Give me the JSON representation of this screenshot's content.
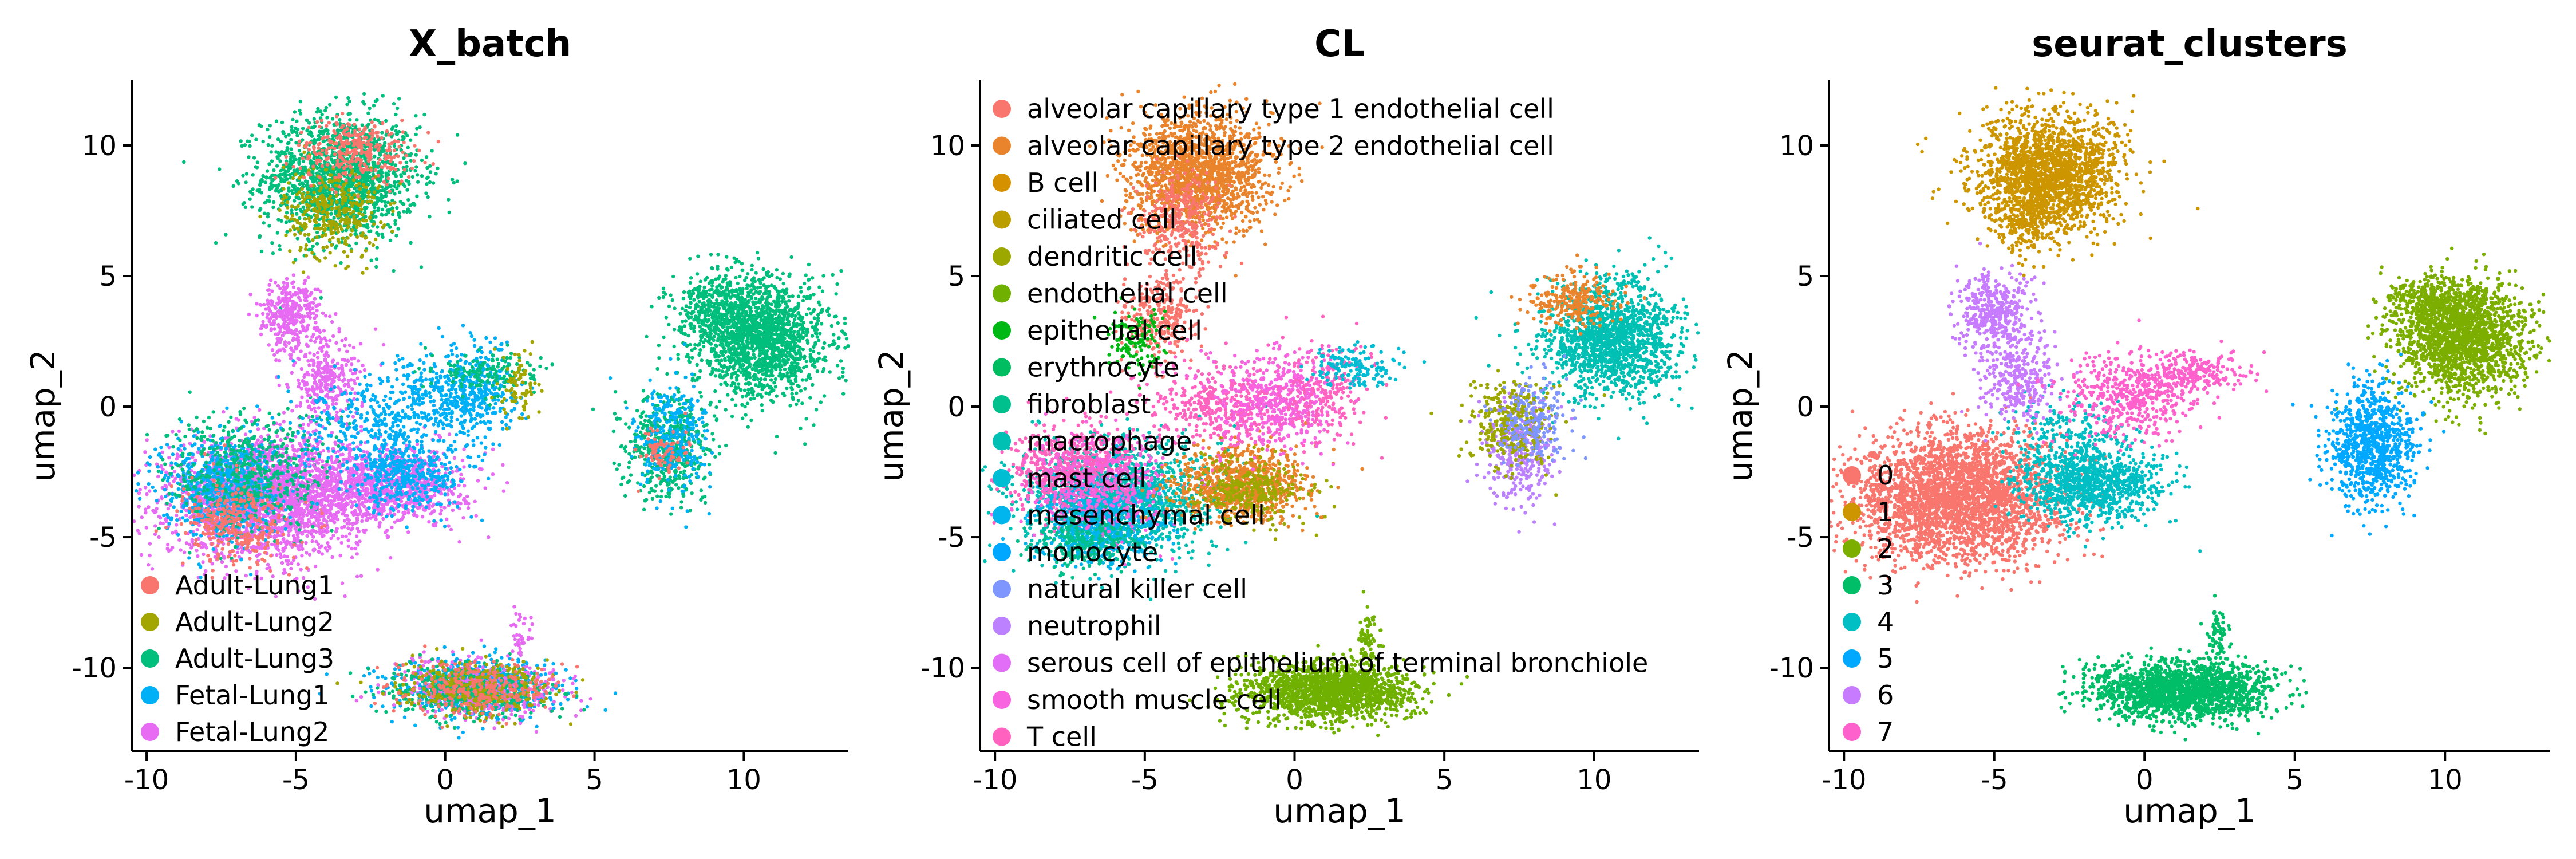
{
  "chart_data": [
    {
      "type": "scatter",
      "title": "X_batch",
      "xlabel": "umap_1",
      "ylabel": "umap_2",
      "xlim": [
        -10.5,
        13.5
      ],
      "ylim": [
        -13.2,
        12.5
      ],
      "xticks": [
        -10,
        -5,
        0,
        5,
        10
      ],
      "yticks": [
        -10,
        -5,
        0,
        5,
        10
      ],
      "grid": false,
      "legend_position": "bottom-left",
      "legend": [
        {
          "label": "Adult-Lung1",
          "color": "#F8766D"
        },
        {
          "label": "Adult-Lung2",
          "color": "#A3A500"
        },
        {
          "label": "Adult-Lung3",
          "color": "#00BF7D"
        },
        {
          "label": "Fetal-Lung1",
          "color": "#00B0F6"
        },
        {
          "label": "Fetal-Lung2",
          "color": "#E76BF3"
        }
      ],
      "point_clusters": [
        {
          "x": -3.5,
          "y": 8.8,
          "sx": 1.3,
          "sy": 1.2,
          "n": 1600,
          "color": "#00BF7D"
        },
        {
          "x": -3.8,
          "y": 7.5,
          "sx": 0.8,
          "sy": 0.9,
          "n": 350,
          "color": "#A3A500"
        },
        {
          "x": -3.0,
          "y": 9.8,
          "sx": 1.0,
          "sy": 0.6,
          "n": 300,
          "color": "#F8766D"
        },
        {
          "x": -6.0,
          "y": -3.5,
          "sx": 1.6,
          "sy": 1.1,
          "n": 2600,
          "color": "#E76BF3"
        },
        {
          "x": -7.5,
          "y": -3.0,
          "sx": 1.0,
          "sy": 1.0,
          "n": 700,
          "color": "#00B0F6"
        },
        {
          "x": -6.5,
          "y": -2.5,
          "sx": 1.4,
          "sy": 1.2,
          "n": 500,
          "color": "#00BF7D"
        },
        {
          "x": -7.0,
          "y": -4.5,
          "sx": 0.9,
          "sy": 0.8,
          "n": 300,
          "color": "#F8766D"
        },
        {
          "x": -1.8,
          "y": -3.0,
          "sx": 1.2,
          "sy": 0.7,
          "n": 900,
          "color": "#E76BF3"
        },
        {
          "x": -1.2,
          "y": -2.6,
          "sx": 1.0,
          "sy": 0.7,
          "n": 400,
          "color": "#00B0F6"
        },
        {
          "x": -5.2,
          "y": 3.5,
          "sx": 0.5,
          "sy": 0.7,
          "n": 350,
          "color": "#E76BF3"
        },
        {
          "x": -4.0,
          "y": 1.0,
          "sx": 0.6,
          "sy": 0.8,
          "n": 300,
          "color": "#E76BF3"
        },
        {
          "x": -2.5,
          "y": -0.8,
          "sx": 1.2,
          "sy": 0.8,
          "n": 250,
          "color": "#00B0F6"
        },
        {
          "x": -0.2,
          "y": 0.5,
          "sx": 1.0,
          "sy": 0.8,
          "n": 350,
          "color": "#00B0F6"
        },
        {
          "x": 1.2,
          "y": 0.5,
          "sx": 0.6,
          "sy": 1.0,
          "n": 250,
          "color": "#00B0F6"
        },
        {
          "x": 1.5,
          "y": 1.3,
          "sx": 0.9,
          "sy": 0.4,
          "n": 150,
          "color": "#00BF7D"
        },
        {
          "x": 2.5,
          "y": 0.8,
          "sx": 0.3,
          "sy": 0.7,
          "n": 80,
          "color": "#A3A500"
        },
        {
          "x": 10.6,
          "y": 2.6,
          "sx": 1.1,
          "sy": 1.1,
          "n": 1600,
          "color": "#00BF7D"
        },
        {
          "x": 9.2,
          "y": 3.8,
          "sx": 0.8,
          "sy": 0.7,
          "n": 350,
          "color": "#00BF7D"
        },
        {
          "x": 7.5,
          "y": -1.5,
          "sx": 0.7,
          "sy": 1.0,
          "n": 500,
          "color": "#00BF7D"
        },
        {
          "x": 7.6,
          "y": -1.2,
          "sx": 0.6,
          "sy": 1.1,
          "n": 300,
          "color": "#00B0F6"
        },
        {
          "x": 7.2,
          "y": -1.8,
          "sx": 0.4,
          "sy": 0.5,
          "n": 80,
          "color": "#F8766D"
        },
        {
          "x": 1.0,
          "y": -10.8,
          "sx": 1.4,
          "sy": 0.55,
          "n": 700,
          "color": "#00B0F6"
        },
        {
          "x": 1.2,
          "y": -10.8,
          "sx": 1.4,
          "sy": 0.55,
          "n": 500,
          "color": "#E76BF3"
        },
        {
          "x": 0.8,
          "y": -10.9,
          "sx": 1.4,
          "sy": 0.5,
          "n": 400,
          "color": "#00BF7D"
        },
        {
          "x": 1.0,
          "y": -10.8,
          "sx": 1.3,
          "sy": 0.5,
          "n": 300,
          "color": "#A3A500"
        },
        {
          "x": 1.0,
          "y": -10.8,
          "sx": 1.3,
          "sy": 0.5,
          "n": 250,
          "color": "#F8766D"
        },
        {
          "x": 2.5,
          "y": -8.8,
          "sx": 0.15,
          "sy": 0.5,
          "n": 40,
          "color": "#E76BF3"
        }
      ]
    },
    {
      "type": "scatter",
      "title": "CL",
      "xlabel": "umap_1",
      "ylabel": "umap_2",
      "xlim": [
        -10.5,
        13.5
      ],
      "ylim": [
        -13.2,
        12.5
      ],
      "xticks": [
        -10,
        -5,
        0,
        5,
        10
      ],
      "yticks": [
        -10,
        -5,
        0,
        5,
        10
      ],
      "grid": false,
      "legend_position": "top-left",
      "legend": [
        {
          "label": "alveolar capillary type 1 endothelial cell",
          "color": "#F8766D"
        },
        {
          "label": "alveolar capillary type 2 endothelial cell",
          "color": "#E9842C"
        },
        {
          "label": "B cell",
          "color": "#D69100"
        },
        {
          "label": "ciliated cell",
          "color": "#BC9D00"
        },
        {
          "label": "dendritic cell",
          "color": "#9CA700"
        },
        {
          "label": "endothelial cell",
          "color": "#6FB000"
        },
        {
          "label": "epithelial cell",
          "color": "#00B813"
        },
        {
          "label": "erythrocyte",
          "color": "#00BD61"
        },
        {
          "label": "fibroblast",
          "color": "#00C08E"
        },
        {
          "label": "macrophage",
          "color": "#00C0B4"
        },
        {
          "label": "mast cell",
          "color": "#00BDD4"
        },
        {
          "label": "mesenchymal cell",
          "color": "#00B5EE"
        },
        {
          "label": "monocyte",
          "color": "#00A7FF"
        },
        {
          "label": "natural killer cell",
          "color": "#7F96FF"
        },
        {
          "label": "neutrophil",
          "color": "#BC81FF"
        },
        {
          "label": "serous cell of epithelium of terminal bronchiole",
          "color": "#E26EF7"
        },
        {
          "label": "smooth muscle cell",
          "color": "#F863DF"
        },
        {
          "label": "T cell",
          "color": "#FF62BF"
        }
      ],
      "point_clusters": [
        {
          "x": -3.2,
          "y": 9.0,
          "sx": 1.2,
          "sy": 1.1,
          "n": 1600,
          "color": "#E9842C"
        },
        {
          "x": -3.8,
          "y": 7.2,
          "sx": 0.7,
          "sy": 0.9,
          "n": 350,
          "color": "#F8766D"
        },
        {
          "x": -6.0,
          "y": -3.5,
          "sx": 1.6,
          "sy": 1.1,
          "n": 1600,
          "color": "#00C0B4"
        },
        {
          "x": -7.5,
          "y": -2.5,
          "sx": 1.0,
          "sy": 0.9,
          "n": 600,
          "color": "#FF62BF"
        },
        {
          "x": -6.5,
          "y": -4.5,
          "sx": 1.0,
          "sy": 0.8,
          "n": 600,
          "color": "#00B5EE"
        },
        {
          "x": -6.5,
          "y": -3.0,
          "sx": 1.2,
          "sy": 1.0,
          "n": 400,
          "color": "#F863DF"
        },
        {
          "x": -7.0,
          "y": -5.2,
          "sx": 0.8,
          "sy": 0.5,
          "n": 200,
          "color": "#00C08E"
        },
        {
          "x": -1.8,
          "y": -3.0,
          "sx": 1.1,
          "sy": 0.7,
          "n": 800,
          "color": "#E9842C"
        },
        {
          "x": -1.5,
          "y": -3.2,
          "sx": 1.0,
          "sy": 0.6,
          "n": 300,
          "color": "#9CA700"
        },
        {
          "x": -4.5,
          "y": 3.5,
          "sx": 0.6,
          "sy": 0.8,
          "n": 300,
          "color": "#F8766D"
        },
        {
          "x": -2.5,
          "y": 0.0,
          "sx": 1.2,
          "sy": 0.8,
          "n": 400,
          "color": "#FF62BF"
        },
        {
          "x": -0.5,
          "y": 0.3,
          "sx": 1.0,
          "sy": 0.9,
          "n": 450,
          "color": "#F863DF"
        },
        {
          "x": 1.0,
          "y": 0.5,
          "sx": 0.7,
          "sy": 1.0,
          "n": 200,
          "color": "#FF62BF"
        },
        {
          "x": 2.0,
          "y": 1.5,
          "sx": 0.8,
          "sy": 0.4,
          "n": 150,
          "color": "#00BDD4"
        },
        {
          "x": -5.2,
          "y": 2.5,
          "sx": 0.5,
          "sy": 0.6,
          "n": 120,
          "color": "#00B813"
        },
        {
          "x": 10.6,
          "y": 2.6,
          "sx": 1.1,
          "sy": 1.1,
          "n": 1500,
          "color": "#00C0B4"
        },
        {
          "x": 9.3,
          "y": 4.0,
          "sx": 0.7,
          "sy": 0.5,
          "n": 250,
          "color": "#E9842C"
        },
        {
          "x": 7.5,
          "y": -1.8,
          "sx": 0.6,
          "sy": 1.0,
          "n": 350,
          "color": "#BC81FF"
        },
        {
          "x": 7.3,
          "y": -0.8,
          "sx": 0.7,
          "sy": 0.8,
          "n": 300,
          "color": "#9CA700"
        },
        {
          "x": 8.0,
          "y": -0.5,
          "sx": 0.6,
          "sy": 0.8,
          "n": 200,
          "color": "#7F96FF"
        },
        {
          "x": 1.2,
          "y": -10.9,
          "sx": 1.4,
          "sy": 0.55,
          "n": 1700,
          "color": "#6FB000"
        },
        {
          "x": 2.4,
          "y": -9.0,
          "sx": 0.2,
          "sy": 0.6,
          "n": 80,
          "color": "#6FB000"
        }
      ]
    },
    {
      "type": "scatter",
      "title": "seurat_clusters",
      "xlabel": "umap_1",
      "ylabel": "umap_2",
      "xlim": [
        -10.5,
        13.5
      ],
      "ylim": [
        -13.2,
        12.5
      ],
      "xticks": [
        -10,
        -5,
        0,
        5,
        10
      ],
      "yticks": [
        -10,
        -5,
        0,
        5,
        10
      ],
      "grid": false,
      "legend_position": "bottom-left",
      "legend": [
        {
          "label": "0",
          "color": "#F8766D"
        },
        {
          "label": "1",
          "color": "#CD9600"
        },
        {
          "label": "2",
          "color": "#7CAE00"
        },
        {
          "label": "3",
          "color": "#00BE67"
        },
        {
          "label": "4",
          "color": "#00BFC4"
        },
        {
          "label": "5",
          "color": "#00A9FF"
        },
        {
          "label": "6",
          "color": "#C77CFF"
        },
        {
          "label": "7",
          "color": "#FF61CC"
        }
      ],
      "point_clusters": [
        {
          "x": -3.2,
          "y": 9.0,
          "sx": 1.2,
          "sy": 1.1,
          "n": 1800,
          "color": "#CD9600"
        },
        {
          "x": -3.8,
          "y": 7.2,
          "sx": 0.6,
          "sy": 0.8,
          "n": 250,
          "color": "#CD9600"
        },
        {
          "x": -6.2,
          "y": -3.4,
          "sx": 1.7,
          "sy": 1.2,
          "n": 3000,
          "color": "#F8766D"
        },
        {
          "x": -1.8,
          "y": -3.0,
          "sx": 1.2,
          "sy": 0.7,
          "n": 1000,
          "color": "#00BFC4"
        },
        {
          "x": -2.5,
          "y": -1.0,
          "sx": 1.0,
          "sy": 0.6,
          "n": 200,
          "color": "#00BFC4"
        },
        {
          "x": -5.0,
          "y": 3.5,
          "sx": 0.6,
          "sy": 0.7,
          "n": 400,
          "color": "#C77CFF"
        },
        {
          "x": -4.2,
          "y": 1.0,
          "sx": 0.6,
          "sy": 0.8,
          "n": 300,
          "color": "#C77CFF"
        },
        {
          "x": -0.5,
          "y": 0.4,
          "sx": 1.1,
          "sy": 0.8,
          "n": 500,
          "color": "#FF61CC"
        },
        {
          "x": 1.8,
          "y": 1.3,
          "sx": 0.9,
          "sy": 0.4,
          "n": 200,
          "color": "#FF61CC"
        },
        {
          "x": 10.6,
          "y": 2.6,
          "sx": 1.1,
          "sy": 1.1,
          "n": 1800,
          "color": "#7CAE00"
        },
        {
          "x": 9.3,
          "y": 4.0,
          "sx": 0.7,
          "sy": 0.5,
          "n": 250,
          "color": "#7CAE00"
        },
        {
          "x": 7.6,
          "y": -1.5,
          "sx": 0.7,
          "sy": 1.1,
          "n": 900,
          "color": "#00A9FF"
        },
        {
          "x": 1.2,
          "y": -10.9,
          "sx": 1.4,
          "sy": 0.55,
          "n": 1800,
          "color": "#00BE67"
        },
        {
          "x": 2.4,
          "y": -9.0,
          "sx": 0.2,
          "sy": 0.6,
          "n": 80,
          "color": "#00BE67"
        }
      ]
    }
  ]
}
